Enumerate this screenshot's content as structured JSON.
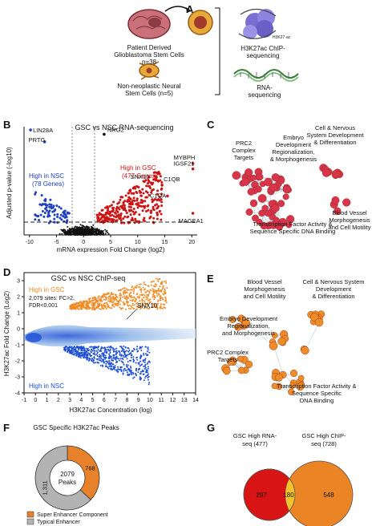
{
  "panels": {
    "a": {
      "letter": "A",
      "patient_label_1": "Patient Derived",
      "patient_label_2": "Glioblastoma Stem Cells",
      "patient_n": "n=38",
      "normal_label_1": "Non-neoplastic Neural",
      "normal_label_2": "Stem Cells (n=5)",
      "chip_mark": "H3K27-ac",
      "chip_label_1": "H3K27ac ChIP-",
      "chip_label_2": "sequencing",
      "rna_label_1": "RNA-",
      "rna_label_2": "sequencing"
    },
    "b": {
      "letter": "B",
      "title": "GSC vs NSC RNA-sequencing",
      "ylabel": "Adjusted p-value (-log10)",
      "xlabel": "mRNA expression Fold Change (log2)",
      "xticks": [
        "-10",
        "-5",
        "0",
        "5",
        "10",
        "15",
        "20"
      ],
      "nsc_label_1": "High in NSC",
      "nsc_label_2": "(78 Genes)",
      "gsc_label_1": "High in GSC",
      "gsc_label_2": "(477 Genes)",
      "genes": [
        "LIN28A",
        "PRTG",
        "NRG2",
        "MYBPH",
        "IGSF21",
        "SNX10",
        "C1QB",
        "C1QA",
        "MAGEA1"
      ],
      "colors": {
        "nsc": "#1f3fbf",
        "gsc": "#cc1414",
        "ns": "#111111"
      }
    },
    "c": {
      "letter": "C",
      "clusters": [
        "Cell & Nervous",
        "System Development",
        "& Differentiation",
        "PRC2",
        "Complex",
        "Targets",
        "Embryo",
        "Development",
        "Regionalization,",
        "& Morphogenesis",
        "Transcription Factor Activity &",
        "Sequence Specific DNA Binding",
        "Blood Vessel",
        "Morphogenesis",
        "and Cell Motility"
      ],
      "node_color": "#d8344c"
    },
    "d": {
      "letter": "D",
      "title": "GSC vs NSC ChIP-seq",
      "gsc_label": "High in GSC",
      "sites_1": "2,079 sites: FC>2,",
      "sites_2": "FDR<0.001",
      "gene": "SNX10",
      "nsc_label": "High in NSC",
      "ylabel": "H3K27ac Fold Change (Log2)",
      "xlabel": "H3K27ac Concentration (log)",
      "yticks": [
        "3",
        "2",
        "1",
        "0",
        "-1",
        "-2",
        "-3",
        "-4"
      ],
      "xticks": [
        "-1",
        "0",
        "1",
        "2",
        "3",
        "4",
        "5",
        "6",
        "7",
        "8",
        "9",
        "10",
        "11",
        "12",
        "13",
        "14"
      ],
      "colors": {
        "gsc": "#f08a24",
        "nsc": "#1d4fd8"
      }
    },
    "e": {
      "letter": "E",
      "clusters": [
        "Blood Vessel",
        "Morphogenesis",
        "and Cell Motility",
        "Cell & Nervous System",
        "Development",
        "& Differentiation",
        "Embryo Development",
        "Regionalization,",
        "and Morphogenesis",
        "PRC2 Complex",
        "Targets",
        "Transcription Factor Activity &",
        "Sequence Specific",
        "DNA Binding"
      ],
      "node_color": "#ef8c2a"
    },
    "f": {
      "letter": "F",
      "title": "GSC Specific H3K27ac Peaks",
      "center_1": "2079",
      "center_2": "Peaks",
      "legend_super": "Super Enhancer Component",
      "legend_typical": "Typical Enhancer",
      "colors": {
        "super": "#e8822a",
        "typical": "#b3b3b3"
      }
    },
    "g": {
      "letter": "G",
      "left_title_1": "GSC High RNA-",
      "left_title_2": "seq (477)",
      "right_title_1": "GSC High ChIP-",
      "right_title_2": "seq (728)",
      "left_only": "297",
      "overlap": "180",
      "right_only": "548",
      "colors": {
        "left": "#d81414",
        "right": "#ea8424",
        "overlap": "#f2c22c"
      }
    }
  },
  "chart_data": [
    {
      "type": "scatter",
      "panel": "B",
      "title": "GSC vs NSC RNA-sequencing",
      "xlabel": "mRNA expression Fold Change (log2)",
      "ylabel": "Adjusted p-value (-log10)",
      "xlim": [
        -11,
        21
      ],
      "labeled_points": [
        {
          "label": "LIN28A",
          "x": -9.8,
          "y": 0.97
        },
        {
          "label": "PRTG",
          "x": -7.2,
          "y": 0.86
        },
        {
          "label": "NRG2",
          "x": 3.8,
          "y": 0.93
        },
        {
          "label": "MYBPH",
          "x": 20.2,
          "y": 0.66
        },
        {
          "label": "IGSF21",
          "x": 20.2,
          "y": 0.61
        },
        {
          "label": "SNX10",
          "x": 12.5,
          "y": 0.48
        },
        {
          "label": "C1QB",
          "x": 14.5,
          "y": 0.46
        },
        {
          "label": "C1QA",
          "x": 15.5,
          "y": 0.36
        },
        {
          "label": "MAGEA1",
          "x": 20.2,
          "y": 0.2
        }
      ],
      "groups": [
        {
          "name": "High in NSC (78 Genes)",
          "count": 78
        },
        {
          "name": "High in GSC (477 Genes)",
          "count": 477
        }
      ]
    },
    {
      "type": "scatter",
      "panel": "D",
      "title": "GSC vs NSC ChIP-seq",
      "xlabel": "H3K27ac Concentration (log)",
      "ylabel": "H3K27ac Fold Change (Log2)",
      "xlim": [
        -1,
        14
      ],
      "ylim": [
        -4,
        3.5
      ]
    },
    {
      "type": "pie",
      "panel": "F",
      "title": "GSC Specific H3K27ac Peaks",
      "categories": [
        "Super Enhancer Component",
        "Typical Enhancer"
      ],
      "values": [
        768,
        1311
      ],
      "total": 2079
    }
  ]
}
